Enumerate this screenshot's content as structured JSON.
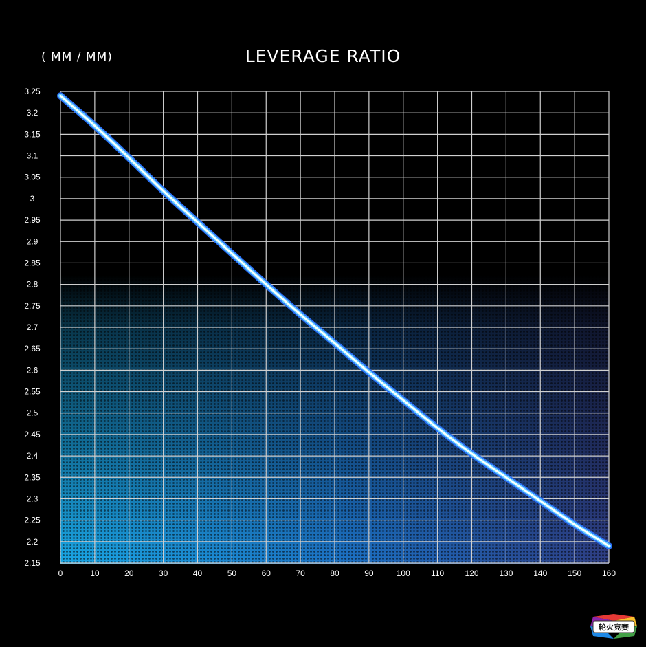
{
  "chart_data": {
    "type": "line",
    "title": "LEVERAGE RATIO",
    "ylabel": "( MM / MM)",
    "xlabel": "",
    "xlim": [
      0,
      160
    ],
    "ylim": [
      2.15,
      3.25
    ],
    "x_ticks": [
      0,
      10,
      20,
      30,
      40,
      50,
      60,
      70,
      80,
      90,
      100,
      110,
      120,
      130,
      140,
      150,
      160
    ],
    "y_ticks": [
      "3.25",
      "3.2",
      "3.15",
      "3.1",
      "3.05",
      "3",
      "2.95",
      "2.9",
      "2.85",
      "2.8",
      "2.75",
      "2.7",
      "2.65",
      "2.6",
      "2.55",
      "2.5",
      "2.45",
      "2.4",
      "2.35",
      "2.3",
      "2.25",
      "2.2",
      "2.15"
    ],
    "grid": true,
    "series": [
      {
        "x": [
          0,
          10,
          20,
          30,
          40,
          50,
          60,
          70,
          80,
          90,
          100,
          110,
          120,
          130,
          140,
          150,
          160
        ],
        "values": [
          3.24,
          3.17,
          3.095,
          3.018,
          2.945,
          2.872,
          2.8,
          2.73,
          2.663,
          2.595,
          2.53,
          2.465,
          2.405,
          2.35,
          2.295,
          2.24,
          2.19
        ],
        "color": "#6fd6ff"
      }
    ],
    "colors": {
      "background": "#000000",
      "gradient_left": "#1aa7e6",
      "gradient_right": "#2f3f86",
      "line_core": "#ffffff",
      "line_glow": "#2a6ff5"
    }
  },
  "watermark": {
    "text": "轮火竞赛",
    "icon": "watermark-logo"
  }
}
